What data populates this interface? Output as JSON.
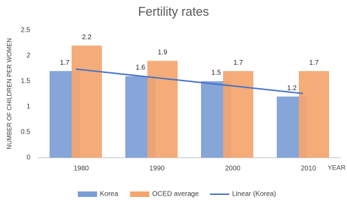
{
  "chart_data": {
    "type": "bar",
    "title": "Fertility rates",
    "y_label": "NUMBER OF CHILDREN PER WOMEN",
    "x_label": "YEAR",
    "categories": [
      "1980",
      "1990",
      "2000",
      "2010"
    ],
    "series": [
      {
        "name": "Korea",
        "color": "#7c9dd6",
        "values": [
          1.7,
          1.6,
          1.5,
          1.2
        ]
      },
      {
        "name": "OCED average",
        "color": "#f4a56e",
        "values": [
          2.2,
          1.9,
          1.7,
          1.7
        ]
      },
      {
        "name": "Linear (Korea)",
        "type": "line",
        "color": "#4472c4",
        "values": [
          1.74,
          1.58,
          1.42,
          1.26
        ]
      }
    ],
    "ylim": [
      0,
      2.5
    ],
    "yticks": [
      0,
      0.5,
      1,
      1.5,
      2,
      2.5
    ],
    "grid": false,
    "legend": "bottom"
  }
}
